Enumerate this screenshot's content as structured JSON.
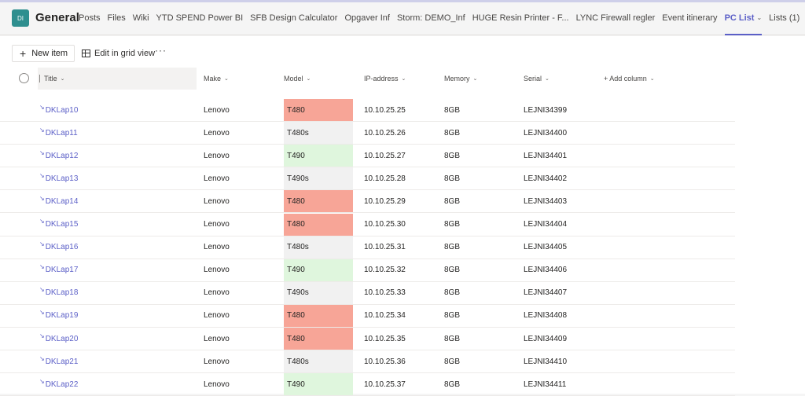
{
  "team": {
    "initials": "DI",
    "channel": "General"
  },
  "tabs": [
    {
      "label": "Posts",
      "active": false,
      "chevron": false
    },
    {
      "label": "Files",
      "active": false,
      "chevron": false
    },
    {
      "label": "Wiki",
      "active": false,
      "chevron": false
    },
    {
      "label": "YTD SPEND Power BI",
      "active": false,
      "chevron": false
    },
    {
      "label": "SFB Design Calculator",
      "active": false,
      "chevron": false
    },
    {
      "label": "Opgaver Inf",
      "active": false,
      "chevron": false
    },
    {
      "label": "Storm: DEMO_Inf",
      "active": false,
      "chevron": false
    },
    {
      "label": "HUGE Resin Printer - F...",
      "active": false,
      "chevron": false
    },
    {
      "label": "LYNC Firewall regler",
      "active": false,
      "chevron": false
    },
    {
      "label": "Event itinerary",
      "active": false,
      "chevron": false
    },
    {
      "label": "PC List",
      "active": true,
      "chevron": true
    },
    {
      "label": "Lists (1)",
      "active": false,
      "chevron": false
    }
  ],
  "toolbar": {
    "new_item": "New item",
    "edit_grid": "Edit in grid view",
    "more": "···"
  },
  "columns": {
    "title": "Title",
    "make": "Make",
    "model": "Model",
    "ip": "IP-address",
    "memory": "Memory",
    "serial": "Serial",
    "add_column": "+ Add column"
  },
  "model_colors": {
    "T480": "#f7a597",
    "T480s": "#f1f1f1",
    "T490": "#dff6dd",
    "T490s": "#f1f1f1"
  },
  "rows": [
    {
      "title": "DKLap10",
      "make": "Lenovo",
      "model": "T480",
      "ip": "10.10.25.25",
      "memory": "8GB",
      "serial": "LEJNI34399"
    },
    {
      "title": "DKLap11",
      "make": "Lenovo",
      "model": "T480s",
      "ip": "10.10.25.26",
      "memory": "8GB",
      "serial": "LEJNI34400"
    },
    {
      "title": "DKLap12",
      "make": "Lenovo",
      "model": "T490",
      "ip": "10.10.25.27",
      "memory": "8GB",
      "serial": "LEJNI34401"
    },
    {
      "title": "DKLap13",
      "make": "Lenovo",
      "model": "T490s",
      "ip": "10.10.25.28",
      "memory": "8GB",
      "serial": "LEJNI34402"
    },
    {
      "title": "DKLap14",
      "make": "Lenovo",
      "model": "T480",
      "ip": "10.10.25.29",
      "memory": "8GB",
      "serial": "LEJNI34403"
    },
    {
      "title": "DKLap15",
      "make": "Lenovo",
      "model": "T480",
      "ip": "10.10.25.30",
      "memory": "8GB",
      "serial": "LEJNI34404"
    },
    {
      "title": "DKLap16",
      "make": "Lenovo",
      "model": "T480s",
      "ip": "10.10.25.31",
      "memory": "8GB",
      "serial": "LEJNI34405"
    },
    {
      "title": "DKLap17",
      "make": "Lenovo",
      "model": "T490",
      "ip": "10.10.25.32",
      "memory": "8GB",
      "serial": "LEJNI34406"
    },
    {
      "title": "DKLap18",
      "make": "Lenovo",
      "model": "T490s",
      "ip": "10.10.25.33",
      "memory": "8GB",
      "serial": "LEJNI34407"
    },
    {
      "title": "DKLap19",
      "make": "Lenovo",
      "model": "T480",
      "ip": "10.10.25.34",
      "memory": "8GB",
      "serial": "LEJNI34408"
    },
    {
      "title": "DKLap20",
      "make": "Lenovo",
      "model": "T480",
      "ip": "10.10.25.35",
      "memory": "8GB",
      "serial": "LEJNI34409"
    },
    {
      "title": "DKLap21",
      "make": "Lenovo",
      "model": "T480s",
      "ip": "10.10.25.36",
      "memory": "8GB",
      "serial": "LEJNI34410"
    },
    {
      "title": "DKLap22",
      "make": "Lenovo",
      "model": "T490",
      "ip": "10.10.25.37",
      "memory": "8GB",
      "serial": "LEJNI34411"
    }
  ]
}
